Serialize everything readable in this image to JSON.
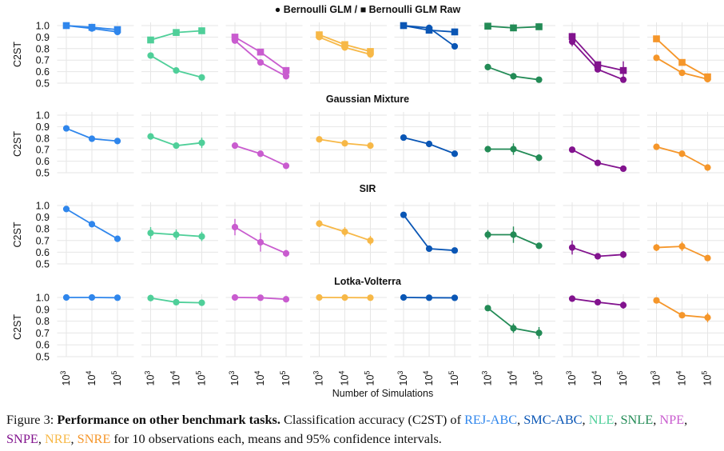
{
  "legend_text": "● Bernoulli GLM / ■ Bernoulli GLM Raw",
  "x_axis_label": "Number of Simulations",
  "y_axis_label": "C2ST",
  "x_tick_labels": [
    "10^3",
    "10^4",
    "10^5"
  ],
  "y_tick_labels": [
    "0.5",
    "0.6",
    "0.7",
    "0.8",
    "0.9",
    "1.0"
  ],
  "caption": {
    "prefix": "Figure 3: ",
    "bold": "Performance on other benchmark tasks.",
    "text_before": " Classification accuracy (C2ST) of ",
    "methods": [
      {
        "name": "REJ-ABC",
        "sep": ", "
      },
      {
        "name": "SMC-ABC",
        "sep": ", "
      },
      {
        "name": "NLE",
        "sep": ", "
      },
      {
        "name": "SNLE",
        "sep": ", "
      },
      {
        "name": "NPE",
        "sep": ", "
      },
      {
        "name": "SNPE",
        "sep": ", "
      },
      {
        "name": "NRE",
        "sep": ", "
      },
      {
        "name": "SNRE",
        "sep": ""
      }
    ],
    "text_after": " for 10 observations each, means and 95% confidence intervals."
  },
  "chart_data": {
    "type": "line",
    "x": [
      1000,
      10000,
      100000
    ],
    "ylim": [
      0.5,
      1.0
    ],
    "grid": true,
    "method_colors": {
      "REJ-ABC": "#2f86ec",
      "SMC-ABC": "#0a56b5",
      "NLE": "#4fcf99",
      "SNLE": "#238b56",
      "NPE": "#c95ccf",
      "SNPE": "#82138e",
      "NRE": "#f7b847",
      "SNRE": "#f5962a"
    },
    "method_order": [
      "REJ-ABC",
      "SMC-ABC",
      "NLE",
      "SNLE",
      "NPE",
      "SNPE",
      "NRE",
      "SNRE"
    ],
    "rows": [
      {
        "title": "● Bernoulli GLM / ■ Bernoulli GLM Raw",
        "panels": [
          {
            "method": "REJ-ABC",
            "series": [
              {
                "marker": "circle",
                "values": [
                  1.0,
                  0.975,
                  0.945
                ],
                "err": [
                  0.003,
                  0.005,
                  0.01
                ]
              },
              {
                "marker": "square",
                "values": [
                  1.0,
                  0.985,
                  0.965
                ],
                "err": [
                  0.003,
                  0.005,
                  0.008
                ]
              }
            ]
          },
          {
            "method": "NLE",
            "series": [
              {
                "marker": "circle",
                "values": [
                  0.74,
                  0.61,
                  0.55
                ],
                "err": [
                  0.01,
                  0.01,
                  0.01
                ]
              },
              {
                "marker": "square",
                "values": [
                  0.875,
                  0.94,
                  0.955
                ],
                "err": [
                  0.01,
                  0.01,
                  0.01
                ]
              }
            ]
          },
          {
            "method": "NPE",
            "series": [
              {
                "marker": "circle",
                "values": [
                  0.87,
                  0.68,
                  0.56
                ],
                "err": [
                  0.015,
                  0.01,
                  0.01
                ]
              },
              {
                "marker": "square",
                "values": [
                  0.9,
                  0.77,
                  0.61
                ],
                "err": [
                  0.015,
                  0.01,
                  0.01
                ]
              }
            ]
          },
          {
            "method": "NRE",
            "series": [
              {
                "marker": "circle",
                "values": [
                  0.9,
                  0.81,
                  0.75
                ],
                "err": [
                  0.015,
                  0.02,
                  0.015
                ]
              },
              {
                "marker": "square",
                "values": [
                  0.92,
                  0.835,
                  0.775
                ],
                "err": [
                  0.015,
                  0.015,
                  0.015
                ]
              }
            ]
          },
          {
            "method": "SMC-ABC",
            "series": [
              {
                "marker": "circle",
                "values": [
                  1.0,
                  0.98,
                  0.82
                ],
                "err": [
                  0.003,
                  0.005,
                  0.01
                ]
              },
              {
                "marker": "square",
                "values": [
                  1.0,
                  0.96,
                  0.945
                ],
                "err": [
                  0.003,
                  0.008,
                  0.008
                ]
              }
            ]
          },
          {
            "method": "SNLE",
            "series": [
              {
                "marker": "circle",
                "values": [
                  0.64,
                  0.56,
                  0.53
                ],
                "err": [
                  0.01,
                  0.01,
                  0.01
                ]
              },
              {
                "marker": "square",
                "values": [
                  0.995,
                  0.98,
                  0.99
                ],
                "err": [
                  0.003,
                  0.005,
                  0.004
                ]
              }
            ]
          },
          {
            "method": "SNPE",
            "series": [
              {
                "marker": "circle",
                "values": [
                  0.86,
                  0.62,
                  0.53
                ],
                "err": [
                  0.04,
                  0.02,
                  0.02
                ]
              },
              {
                "marker": "square",
                "values": [
                  0.905,
                  0.66,
                  0.61
                ],
                "err": [
                  0.03,
                  0.02,
                  0.08
                ]
              }
            ]
          },
          {
            "method": "SNRE",
            "series": [
              {
                "marker": "circle",
                "values": [
                  0.72,
                  0.59,
                  0.535
                ],
                "err": [
                  0.02,
                  0.01,
                  0.01
                ]
              },
              {
                "marker": "square",
                "values": [
                  0.885,
                  0.68,
                  0.555
                ],
                "err": [
                  0.025,
                  0.02,
                  0.01
                ]
              }
            ]
          }
        ]
      },
      {
        "title": "Gaussian Mixture",
        "panels": [
          {
            "method": "REJ-ABC",
            "series": [
              {
                "marker": "circle",
                "values": [
                  0.885,
                  0.795,
                  0.775
                ],
                "err": [
                  0.01,
                  0.01,
                  0.01
                ]
              }
            ]
          },
          {
            "method": "NLE",
            "series": [
              {
                "marker": "circle",
                "values": [
                  0.815,
                  0.735,
                  0.76
                ],
                "err": [
                  0.02,
                  0.01,
                  0.045
                ]
              }
            ]
          },
          {
            "method": "NPE",
            "series": [
              {
                "marker": "circle",
                "values": [
                  0.735,
                  0.665,
                  0.56
                ],
                "err": [
                  0.01,
                  0.01,
                  0.01
                ]
              }
            ]
          },
          {
            "method": "NRE",
            "series": [
              {
                "marker": "circle",
                "values": [
                  0.79,
                  0.755,
                  0.735
                ],
                "err": [
                  0.01,
                  0.01,
                  0.01
                ]
              }
            ]
          },
          {
            "method": "SMC-ABC",
            "series": [
              {
                "marker": "circle",
                "values": [
                  0.805,
                  0.75,
                  0.665
                ],
                "err": [
                  0.01,
                  0.01,
                  0.01
                ]
              }
            ]
          },
          {
            "method": "SNLE",
            "series": [
              {
                "marker": "circle",
                "values": [
                  0.705,
                  0.705,
                  0.63
                ],
                "err": [
                  0.015,
                  0.05,
                  0.03
                ]
              }
            ]
          },
          {
            "method": "SNPE",
            "series": [
              {
                "marker": "circle",
                "values": [
                  0.7,
                  0.585,
                  0.535
                ],
                "err": [
                  0.01,
                  0.01,
                  0.01
                ]
              }
            ]
          },
          {
            "method": "SNRE",
            "series": [
              {
                "marker": "circle",
                "values": [
                  0.725,
                  0.665,
                  0.545
                ],
                "err": [
                  0.01,
                  0.015,
                  0.01
                ]
              }
            ]
          }
        ]
      },
      {
        "title": "SIR",
        "panels": [
          {
            "method": "REJ-ABC",
            "series": [
              {
                "marker": "circle",
                "values": [
                  0.97,
                  0.84,
                  0.715
                ],
                "err": [
                  0.01,
                  0.01,
                  0.01
                ]
              }
            ]
          },
          {
            "method": "NLE",
            "series": [
              {
                "marker": "circle",
                "values": [
                  0.765,
                  0.75,
                  0.735
                ],
                "err": [
                  0.05,
                  0.045,
                  0.04
                ]
              }
            ]
          },
          {
            "method": "NPE",
            "series": [
              {
                "marker": "circle",
                "values": [
                  0.815,
                  0.685,
                  0.59
                ],
                "err": [
                  0.07,
                  0.08,
                  0.03
                ]
              }
            ]
          },
          {
            "method": "NRE",
            "series": [
              {
                "marker": "circle",
                "values": [
                  0.845,
                  0.775,
                  0.7
                ],
                "err": [
                  0.03,
                  0.04,
                  0.04
                ]
              }
            ]
          },
          {
            "method": "SMC-ABC",
            "series": [
              {
                "marker": "circle",
                "values": [
                  0.92,
                  0.63,
                  0.615
                ],
                "err": [
                  0.01,
                  0.01,
                  0.01
                ]
              }
            ]
          },
          {
            "method": "SNLE",
            "series": [
              {
                "marker": "circle",
                "values": [
                  0.75,
                  0.75,
                  0.655
                ],
                "err": [
                  0.04,
                  0.07,
                  0.02
                ]
              }
            ]
          },
          {
            "method": "SNPE",
            "series": [
              {
                "marker": "circle",
                "values": [
                  0.64,
                  0.565,
                  0.58
                ],
                "err": [
                  0.06,
                  0.02,
                  0.03
                ]
              }
            ]
          },
          {
            "method": "SNRE",
            "series": [
              {
                "marker": "circle",
                "values": [
                  0.64,
                  0.65,
                  0.55
                ],
                "err": [
                  0.03,
                  0.04,
                  0.02
                ]
              }
            ]
          }
        ]
      },
      {
        "title": "Lotka-Volterra",
        "panels": [
          {
            "method": "REJ-ABC",
            "series": [
              {
                "marker": "circle",
                "values": [
                  1.0,
                  1.0,
                  0.998
                ],
                "err": [
                  0.003,
                  0.003,
                  0.003
                ]
              }
            ]
          },
          {
            "method": "NLE",
            "series": [
              {
                "marker": "circle",
                "values": [
                  0.995,
                  0.96,
                  0.955
                ],
                "err": [
                  0.005,
                  0.01,
                  0.01
                ]
              }
            ]
          },
          {
            "method": "NPE",
            "series": [
              {
                "marker": "circle",
                "values": [
                  1.0,
                  0.998,
                  0.985
                ],
                "err": [
                  0.003,
                  0.003,
                  0.005
                ]
              }
            ]
          },
          {
            "method": "NRE",
            "series": [
              {
                "marker": "circle",
                "values": [
                  1.0,
                  0.999,
                  0.998
                ],
                "err": [
                  0.003,
                  0.003,
                  0.003
                ]
              }
            ]
          },
          {
            "method": "SMC-ABC",
            "series": [
              {
                "marker": "circle",
                "values": [
                  1.0,
                  0.998,
                  0.997
                ],
                "err": [
                  0.003,
                  0.003,
                  0.003
                ]
              }
            ]
          },
          {
            "method": "SNLE",
            "series": [
              {
                "marker": "circle",
                "values": [
                  0.91,
                  0.74,
                  0.7
                ],
                "err": [
                  0.01,
                  0.04,
                  0.05
                ]
              }
            ]
          },
          {
            "method": "SNPE",
            "series": [
              {
                "marker": "circle",
                "values": [
                  0.99,
                  0.96,
                  0.935
                ],
                "err": [
                  0.01,
                  0.01,
                  0.03
                ]
              }
            ]
          },
          {
            "method": "SNRE",
            "series": [
              {
                "marker": "circle",
                "values": [
                  0.975,
                  0.85,
                  0.83
                ],
                "err": [
                  0.01,
                  0.02,
                  0.04
                ]
              }
            ]
          }
        ]
      }
    ]
  }
}
